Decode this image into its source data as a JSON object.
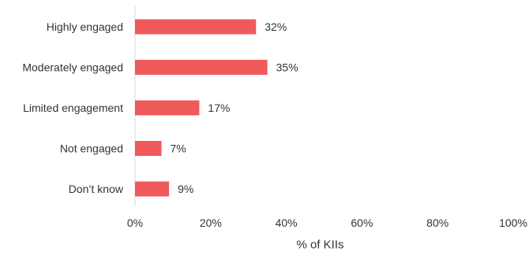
{
  "chart_data": {
    "type": "bar",
    "orientation": "horizontal",
    "categories": [
      "Highly engaged",
      "Moderately engaged",
      "Limited engagement",
      "Not engaged",
      "Don’t know"
    ],
    "values": [
      32,
      35,
      17,
      7,
      9
    ],
    "value_labels": [
      "32%",
      "35%",
      "17%",
      "7%",
      "9%"
    ],
    "title": "",
    "xlabel": "% of KIIs",
    "ylabel": "",
    "xlim": [
      0,
      100
    ],
    "x_ticks": [
      0,
      20,
      40,
      60,
      80,
      100
    ],
    "x_tick_labels": [
      "0%",
      "20%",
      "40%",
      "60%",
      "80%",
      "100%"
    ],
    "grid": false,
    "bar_color": "#f05a5b",
    "axis_color": "#d9d9d9"
  }
}
